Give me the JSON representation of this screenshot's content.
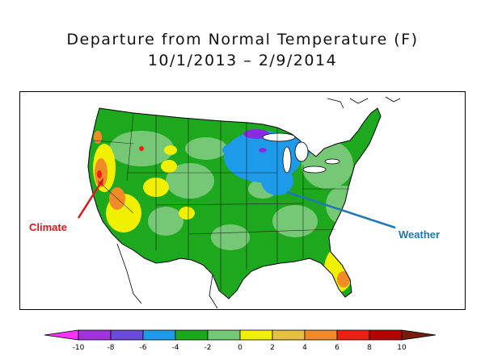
{
  "title": {
    "line1": "Departure from Normal Temperature (F)",
    "line2": "10/1/2013 – 2/9/2014"
  },
  "annotations": {
    "climate": {
      "text": "Climate",
      "color": "#d7191c"
    },
    "weather": {
      "text": "Weather",
      "color": "#1f78b4"
    }
  },
  "legend": {
    "ticks": [
      "-10",
      "-8",
      "-6",
      "-4",
      "-2",
      "0",
      "2",
      "4",
      "6",
      "8",
      "10"
    ],
    "low_cap_color": "#ff33ff",
    "high_cap_color": "#7a1a0a",
    "bins": [
      {
        "range": "-10 to -8",
        "color": "#a033e0"
      },
      {
        "range": "-8 to -6",
        "color": "#6a4adf"
      },
      {
        "range": "-6 to -4",
        "color": "#1e9be8"
      },
      {
        "range": "-4 to -2",
        "color": "#1ea81e"
      },
      {
        "range": "-2 to 0",
        "color": "#76c876"
      },
      {
        "range": "0 to 2",
        "color": "#f0f000"
      },
      {
        "range": "2 to 4",
        "color": "#e8c040"
      },
      {
        "range": "4 to 6",
        "color": "#f08c28"
      },
      {
        "range": "6 to 8",
        "color": "#f01e14"
      },
      {
        "range": "8 to 10",
        "color": "#b80000"
      }
    ]
  },
  "map_colors": {
    "ocean": "#ffffff",
    "dark_green": "#1ea81e",
    "light_green": "#76c876",
    "blue": "#1e9be8",
    "purple": "#8a2be2",
    "yellow": "#f0f000",
    "gold": "#e8c040",
    "orange": "#f08c28",
    "red": "#f01e14"
  }
}
